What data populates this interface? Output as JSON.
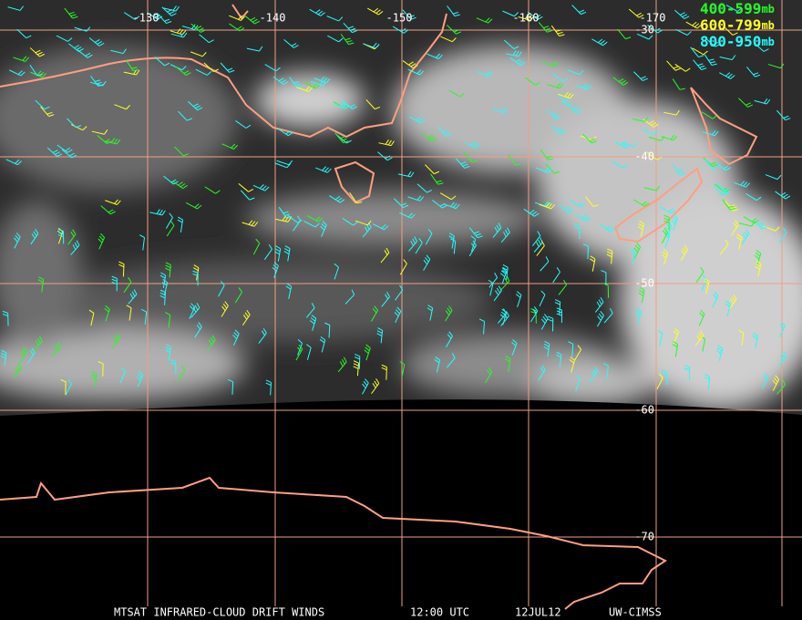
{
  "map": {
    "lon_labels": [
      "-130",
      "-140",
      "-150",
      "-160",
      "-170"
    ],
    "lat_labels": [
      "-30",
      "-40",
      "-50",
      "-60",
      "-70"
    ],
    "legend": [
      {
        "range": "400-599",
        "unit": "mb",
        "color": "#22ff22"
      },
      {
        "range": "600-799",
        "unit": "mb",
        "color": "#ffff22"
      },
      {
        "range": "800-950",
        "unit": "mb",
        "color": "#22ffff"
      }
    ],
    "footer": [
      "MTSAT INFRARED-CLOUD DRIFT WINDS",
      "12:00 UTC",
      "12JUL12",
      "UW-CIMSS"
    ]
  }
}
